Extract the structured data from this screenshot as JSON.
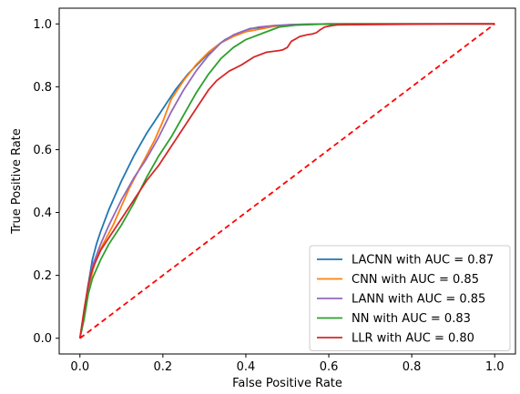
{
  "chart_data": {
    "type": "line",
    "xlabel": "False Positive Rate",
    "ylabel": "True Positive Rate",
    "xlim": [
      -0.05,
      1.05
    ],
    "ylim": [
      -0.05,
      1.05
    ],
    "xticks": [
      "0.0",
      "0.2",
      "0.4",
      "0.6",
      "0.8",
      "1.0"
    ],
    "yticks": [
      "0.0",
      "0.2",
      "0.4",
      "0.6",
      "0.8",
      "1.0"
    ],
    "grid": false,
    "legend_position": "lower-right",
    "series": [
      {
        "name": "LACNN with AUC = 0.87",
        "color": "#1f77b4",
        "x": [
          0,
          0.01,
          0.02,
          0.03,
          0.04,
          0.05,
          0.07,
          0.1,
          0.13,
          0.16,
          0.2,
          0.23,
          0.26,
          0.29,
          0.32,
          0.35,
          0.38,
          0.41,
          0.45,
          0.5,
          0.55,
          0.6,
          0.7,
          0.8,
          0.9,
          1.0
        ],
        "y": [
          0,
          0.08,
          0.17,
          0.25,
          0.3,
          0.34,
          0.41,
          0.5,
          0.58,
          0.65,
          0.73,
          0.79,
          0.84,
          0.88,
          0.92,
          0.95,
          0.97,
          0.985,
          0.99,
          0.997,
          0.999,
          1.0,
          1.0,
          1.0,
          1.0,
          1.0
        ]
      },
      {
        "name": "CNN with AUC = 0.85",
        "color": "#ff7f0e",
        "x": [
          0,
          0.01,
          0.02,
          0.03,
          0.04,
          0.06,
          0.08,
          0.1,
          0.12,
          0.14,
          0.16,
          0.18,
          0.2,
          0.22,
          0.25,
          0.28,
          0.31,
          0.34,
          0.37,
          0.4,
          0.44,
          0.48,
          0.52,
          0.6,
          0.7,
          0.8,
          0.9,
          1.0
        ],
        "y": [
          0,
          0.07,
          0.15,
          0.21,
          0.26,
          0.31,
          0.36,
          0.42,
          0.48,
          0.53,
          0.58,
          0.63,
          0.69,
          0.76,
          0.82,
          0.87,
          0.91,
          0.94,
          0.96,
          0.975,
          0.985,
          0.995,
          0.998,
          1.0,
          1.0,
          1.0,
          1.0,
          1.0
        ]
      },
      {
        "name": "LANN with AUC = 0.85",
        "color": "#9467bd",
        "x": [
          0,
          0.01,
          0.02,
          0.03,
          0.05,
          0.07,
          0.1,
          0.13,
          0.16,
          0.19,
          0.22,
          0.25,
          0.28,
          0.31,
          0.34,
          0.37,
          0.4,
          0.43,
          0.47,
          0.52,
          0.6,
          0.7,
          0.8,
          0.9,
          1.0
        ],
        "y": [
          0,
          0.07,
          0.16,
          0.23,
          0.3,
          0.36,
          0.44,
          0.51,
          0.57,
          0.64,
          0.72,
          0.79,
          0.85,
          0.9,
          0.94,
          0.965,
          0.98,
          0.99,
          0.995,
          0.998,
          1.0,
          1.0,
          1.0,
          1.0,
          1.0
        ]
      },
      {
        "name": "NN with AUC = 0.83",
        "color": "#2ca02c",
        "x": [
          0,
          0.01,
          0.02,
          0.03,
          0.05,
          0.07,
          0.1,
          0.13,
          0.16,
          0.19,
          0.22,
          0.25,
          0.28,
          0.31,
          0.34,
          0.37,
          0.4,
          0.44,
          0.48,
          0.52,
          0.58,
          0.65,
          0.75,
          0.85,
          1.0
        ],
        "y": [
          0,
          0.06,
          0.14,
          0.19,
          0.25,
          0.3,
          0.36,
          0.43,
          0.51,
          0.58,
          0.64,
          0.71,
          0.78,
          0.84,
          0.89,
          0.925,
          0.95,
          0.97,
          0.99,
          0.996,
          0.999,
          1.0,
          1.0,
          1.0,
          1.0
        ]
      },
      {
        "name": "LLR with AUC = 0.80",
        "color": "#d62728",
        "x": [
          0,
          0.01,
          0.02,
          0.03,
          0.05,
          0.07,
          0.1,
          0.13,
          0.16,
          0.19,
          0.22,
          0.25,
          0.28,
          0.31,
          0.33,
          0.36,
          0.39,
          0.42,
          0.45,
          0.48,
          0.49,
          0.5,
          0.51,
          0.52,
          0.53,
          0.55,
          0.56,
          0.57,
          0.58,
          0.59,
          0.6,
          0.61,
          0.62,
          0.7,
          0.8,
          0.9,
          1.0
        ],
        "y": [
          0,
          0.09,
          0.17,
          0.22,
          0.28,
          0.32,
          0.38,
          0.44,
          0.5,
          0.55,
          0.61,
          0.67,
          0.73,
          0.79,
          0.82,
          0.85,
          0.87,
          0.895,
          0.91,
          0.915,
          0.918,
          0.925,
          0.945,
          0.952,
          0.96,
          0.966,
          0.968,
          0.972,
          0.982,
          0.99,
          0.993,
          0.995,
          0.997,
          0.998,
          0.999,
          1.0,
          1.0
        ]
      }
    ],
    "reference_line": {
      "color": "#ff0000",
      "style": "dashed",
      "x": [
        0,
        1
      ],
      "y": [
        0,
        1
      ]
    }
  }
}
